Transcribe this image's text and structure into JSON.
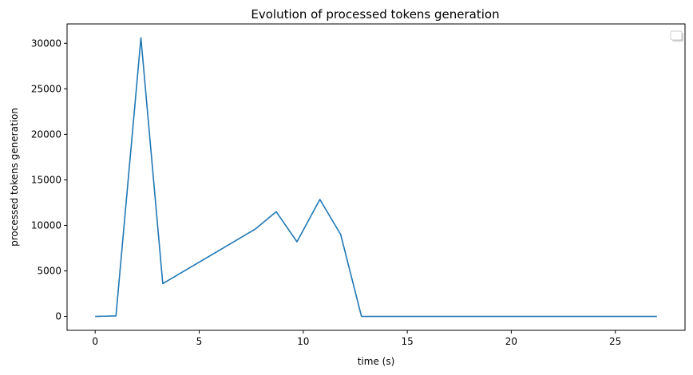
{
  "chart_data": {
    "type": "line",
    "title": "Evolution of processed tokens generation",
    "xlabel": "time (s)",
    "ylabel": "processed tokens generation",
    "xlim": [
      -1.35,
      28.35
    ],
    "ylim": [
      -1530,
      32130
    ],
    "xticks": [
      0,
      5,
      10,
      15,
      20,
      25
    ],
    "yticks": [
      0,
      5000,
      10000,
      15000,
      20000,
      25000,
      30000
    ],
    "grid": false,
    "legend": "upper-right (empty)",
    "color": "#1f77b4",
    "series": [
      {
        "x": [
          0,
          1,
          2.2,
          3.25,
          7.7,
          8.7,
          9.7,
          10.8,
          11.8,
          12.8,
          27
        ],
        "y": [
          0,
          50,
          30600,
          3600,
          9600,
          11500,
          8200,
          12850,
          9000,
          0,
          0
        ]
      }
    ]
  }
}
